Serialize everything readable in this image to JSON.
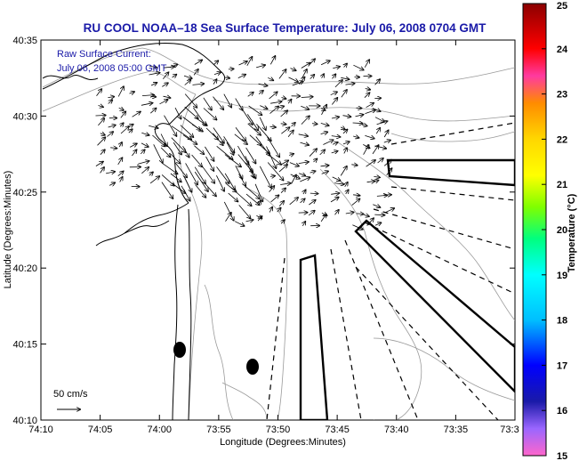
{
  "title": "RU COOL  NOAA–18  Sea Surface Temperature:  July 06, 2008 0704 GMT",
  "annotation": {
    "line1": "Raw Surface Current:",
    "line2": "July 06, 2008 05:00 GMT"
  },
  "scale_label": "50 cm/s",
  "x_axis": {
    "label": "Longitude (Degrees:Minutes)",
    "ticks": [
      "74:10",
      "74:05",
      "74:00",
      "73:55",
      "73:50",
      "73:45",
      "73:40",
      "73:35",
      "73:3"
    ]
  },
  "y_axis": {
    "label": "Latitude (Degrees:Minutes)",
    "ticks": [
      "40:35",
      "40:30",
      "40:25",
      "40:20",
      "40:15",
      "40:10"
    ]
  },
  "colorbar": {
    "label": "Temperature (°C)",
    "ticks": [
      "25",
      "24",
      "23",
      "22",
      "21",
      "20",
      "19",
      "18",
      "17",
      "16",
      "15"
    ],
    "colors": [
      "#8b0000",
      "#ff0000",
      "#ff00ff",
      "#ff8c00",
      "#ffd700",
      "#ffff00",
      "#7fff00",
      "#00ff7f",
      "#00ffff",
      "#00bfff",
      "#0000ff",
      "#1a1aa8",
      "#9400d3",
      "#ff66cc"
    ]
  },
  "colors": {
    "title": "#1a1aa8",
    "contour": "#9a9a9a",
    "coast": "#000000"
  }
}
